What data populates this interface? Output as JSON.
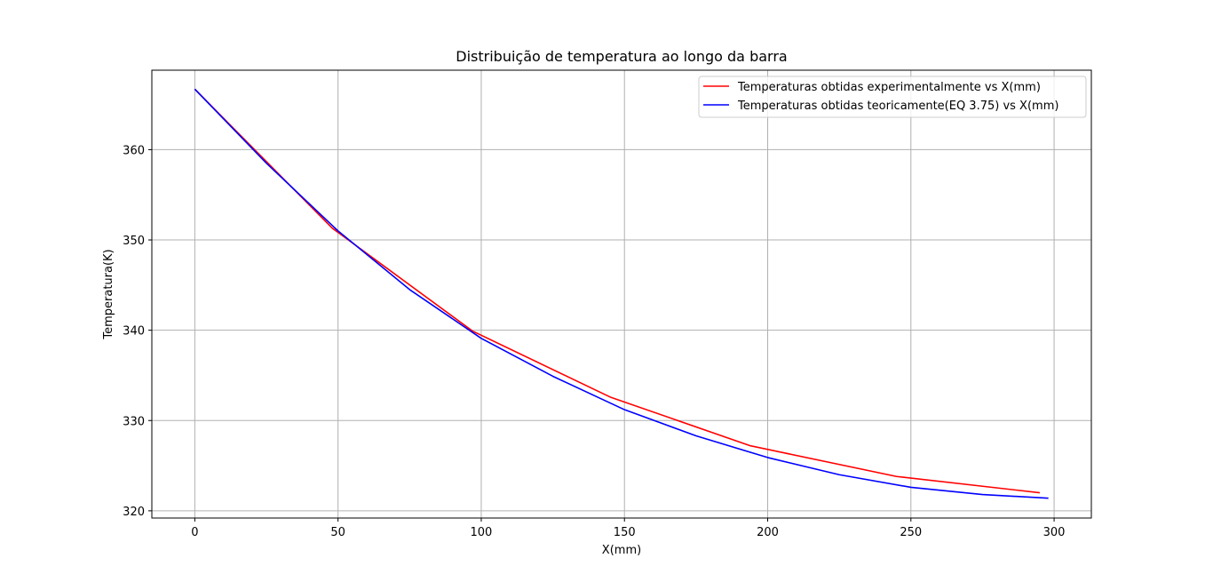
{
  "chart_data": {
    "type": "line",
    "title": "Distribuição de temperatura ao longo da barra",
    "xlabel": "X(mm)",
    "ylabel": "Temperatura(K)",
    "xlim": [
      -15,
      313
    ],
    "ylim": [
      319.2,
      368.8
    ],
    "xticks": [
      0,
      50,
      100,
      150,
      200,
      250,
      300
    ],
    "yticks": [
      320,
      330,
      340,
      350,
      360
    ],
    "grid": true,
    "legend_position": "upper right",
    "series": [
      {
        "name": "Temperaturas obtidas experimentalmente vs X(mm)",
        "color": "#ff0000",
        "x": [
          0,
          48,
          97,
          145,
          194,
          245,
          295
        ],
        "y": [
          366.7,
          351.3,
          339.9,
          332.6,
          327.2,
          323.8,
          322.0
        ]
      },
      {
        "name": "Temperaturas obtidas teoricamente(EQ 3.75) vs X(mm)",
        "color": "#0000ff",
        "x": [
          0,
          25,
          50,
          75,
          100,
          125,
          150,
          175,
          200,
          225,
          250,
          275,
          298
        ],
        "y": [
          366.7,
          358.5,
          351.0,
          344.5,
          339.1,
          334.9,
          331.2,
          328.3,
          325.9,
          324.0,
          322.6,
          321.8,
          321.4
        ]
      }
    ]
  }
}
